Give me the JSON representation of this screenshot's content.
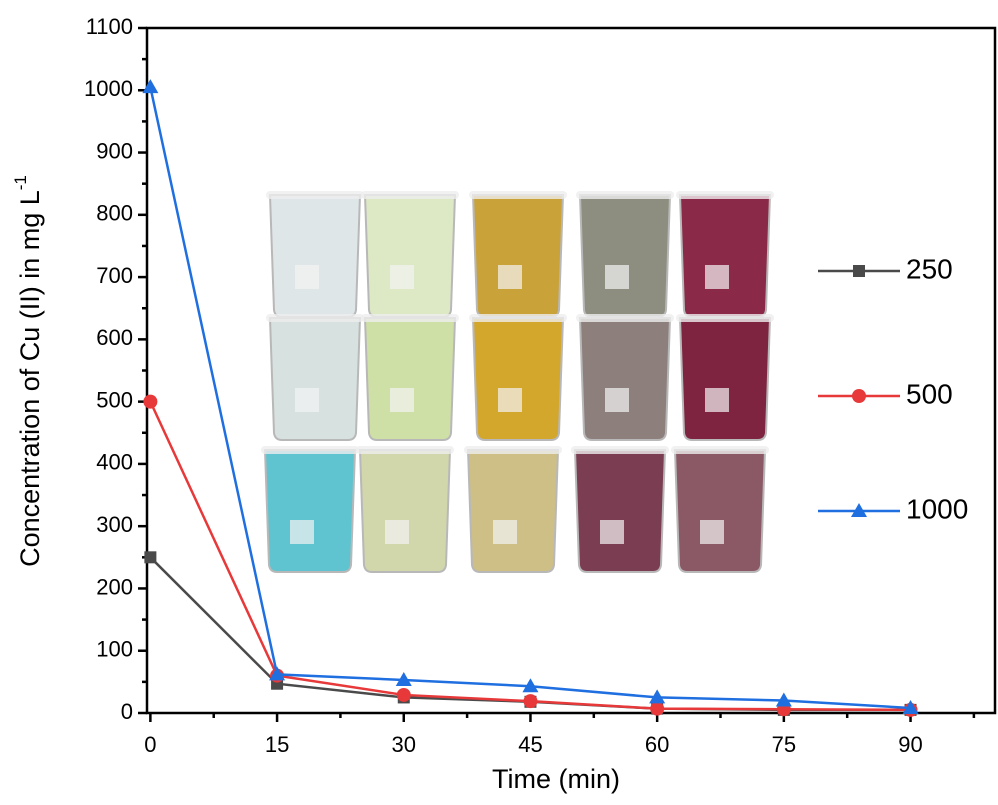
{
  "chart_data": {
    "type": "line",
    "xlabel": "Time (min)",
    "ylabel": "Concentration of Cu (II) in mg L",
    "ylabel_superscript": "-1",
    "x": [
      0,
      15,
      30,
      45,
      60,
      75,
      90
    ],
    "series": [
      {
        "name": "250",
        "color": "#4a4a4a",
        "marker": "square",
        "values": [
          250,
          47,
          25,
          18,
          7,
          5,
          5
        ]
      },
      {
        "name": "500",
        "color": "#e8393a",
        "marker": "circle",
        "values": [
          500,
          60,
          29,
          19,
          7,
          6,
          5
        ]
      },
      {
        "name": "1000",
        "color": "#1f6fe0",
        "marker": "triangle",
        "values": [
          1005,
          62,
          53,
          43,
          25,
          20,
          8
        ]
      }
    ],
    "xlim": [
      -0.4,
      100
    ],
    "ylim": [
      0,
      1100
    ],
    "xticks": [
      0,
      15,
      30,
      45,
      60,
      75,
      90
    ],
    "yticks": [
      0,
      100,
      200,
      300,
      400,
      500,
      600,
      700,
      800,
      900,
      1000,
      1100
    ],
    "legend": "right"
  }
}
